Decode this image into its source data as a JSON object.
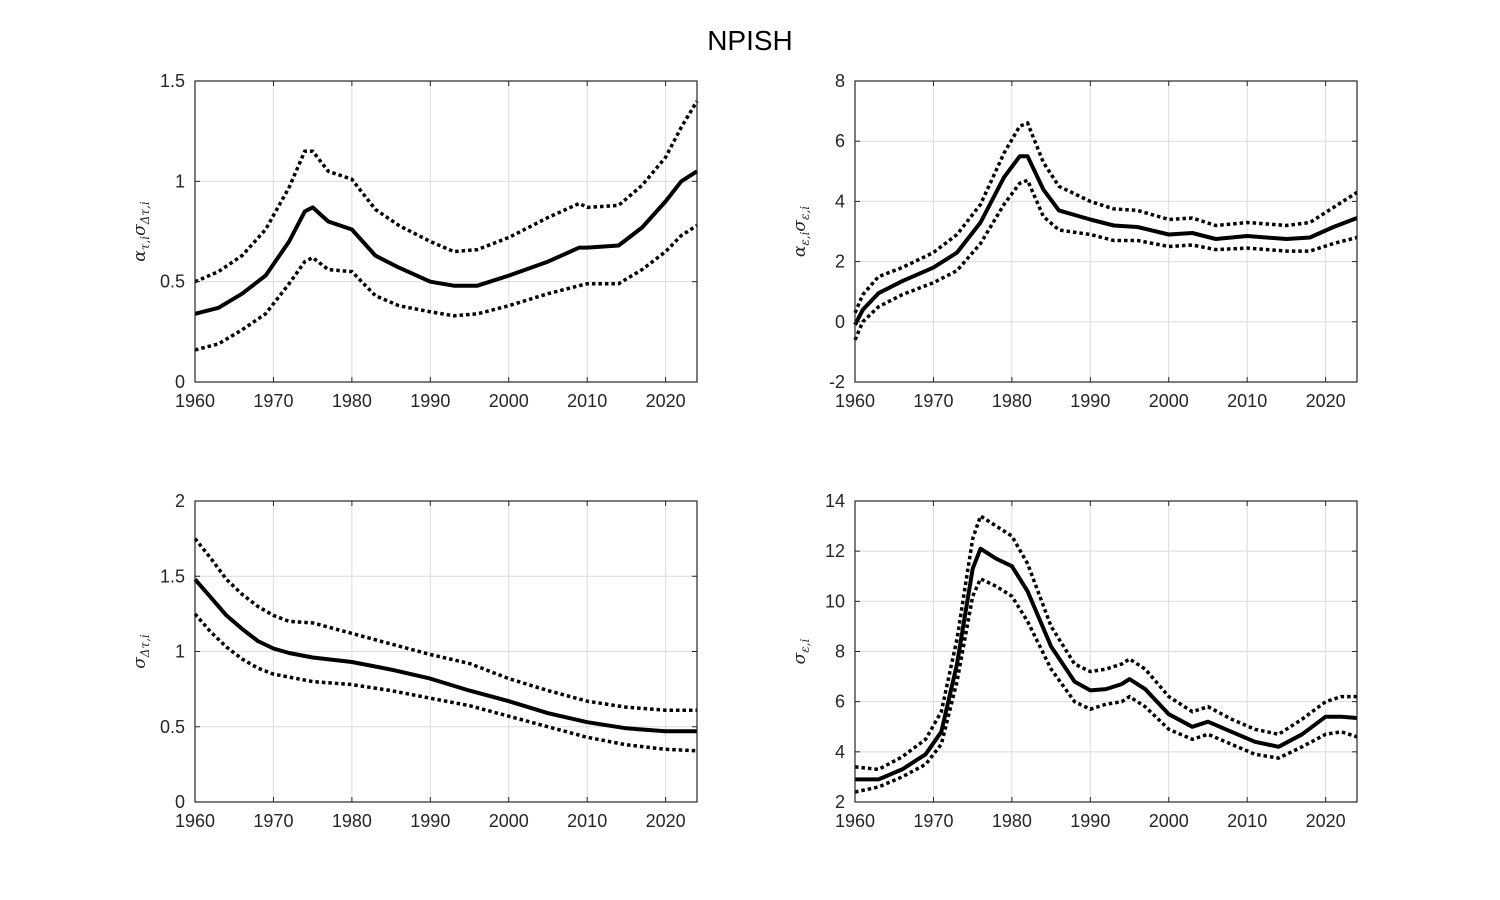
{
  "figure": {
    "title": "NPISH"
  },
  "chart_data": [
    {
      "type": "line",
      "ylabel": "α τ,i σ Δτ,i",
      "ylabel_parts": {
        "a": "α",
        "a_sub": "τ,i",
        "b": "σ",
        "b_sub": "Δτ,i"
      },
      "xlim": [
        1960,
        2024
      ],
      "ylim": [
        0,
        1.5
      ],
      "xticks": [
        1960,
        1970,
        1980,
        1990,
        2000,
        2010,
        2020
      ],
      "yticks": [
        0,
        0.5,
        1,
        1.5
      ],
      "grid": true,
      "x": [
        1960,
        1963,
        1966,
        1969,
        1972,
        1974,
        1975,
        1977,
        1980,
        1983,
        1986,
        1990,
        1993,
        1996,
        2000,
        2005,
        2009,
        2010,
        2014,
        2017,
        2020,
        2022,
        2024
      ],
      "series": [
        {
          "role": "upper",
          "values": [
            0.5,
            0.55,
            0.63,
            0.76,
            0.97,
            1.15,
            1.15,
            1.05,
            1.01,
            0.86,
            0.78,
            0.7,
            0.65,
            0.66,
            0.72,
            0.82,
            0.89,
            0.87,
            0.88,
            0.98,
            1.12,
            1.27,
            1.4
          ]
        },
        {
          "role": "median",
          "values": [
            0.34,
            0.37,
            0.44,
            0.53,
            0.7,
            0.85,
            0.87,
            0.8,
            0.76,
            0.63,
            0.57,
            0.5,
            0.48,
            0.48,
            0.53,
            0.6,
            0.67,
            0.67,
            0.68,
            0.77,
            0.9,
            1.0,
            1.05
          ]
        },
        {
          "role": "lower",
          "values": [
            0.16,
            0.19,
            0.26,
            0.34,
            0.49,
            0.6,
            0.62,
            0.56,
            0.55,
            0.43,
            0.38,
            0.35,
            0.33,
            0.34,
            0.38,
            0.44,
            0.48,
            0.49,
            0.49,
            0.56,
            0.65,
            0.73,
            0.78
          ]
        }
      ]
    },
    {
      "type": "line",
      "ylabel": "α ε,i σ ε,i",
      "ylabel_parts": {
        "a": "α",
        "a_sub": "ε,i",
        "b": "σ",
        "b_sub": "ε,i"
      },
      "xlim": [
        1960,
        2024
      ],
      "ylim": [
        -2,
        8
      ],
      "xticks": [
        1960,
        1970,
        1980,
        1990,
        2000,
        2010,
        2020
      ],
      "yticks": [
        -2,
        0,
        2,
        4,
        6,
        8
      ],
      "grid": true,
      "x": [
        1960,
        1961,
        1963,
        1966,
        1970,
        1973,
        1976,
        1979,
        1981,
        1982,
        1984,
        1986,
        1990,
        1993,
        1996,
        2000,
        2003,
        2006,
        2010,
        2015,
        2018,
        2021,
        2024
      ],
      "series": [
        {
          "role": "upper",
          "values": [
            0.3,
            0.9,
            1.5,
            1.8,
            2.3,
            2.9,
            3.9,
            5.6,
            6.5,
            6.6,
            5.3,
            4.5,
            4.0,
            3.75,
            3.7,
            3.4,
            3.45,
            3.2,
            3.3,
            3.2,
            3.3,
            3.8,
            4.3
          ]
        },
        {
          "role": "median",
          "values": [
            -0.1,
            0.4,
            0.95,
            1.35,
            1.8,
            2.3,
            3.3,
            4.8,
            5.5,
            5.5,
            4.4,
            3.7,
            3.4,
            3.2,
            3.15,
            2.9,
            2.95,
            2.75,
            2.85,
            2.75,
            2.8,
            3.15,
            3.45
          ]
        },
        {
          "role": "lower",
          "values": [
            -0.6,
            0.0,
            0.5,
            0.9,
            1.3,
            1.7,
            2.6,
            3.9,
            4.6,
            4.7,
            3.5,
            3.05,
            2.9,
            2.7,
            2.7,
            2.5,
            2.55,
            2.4,
            2.45,
            2.35,
            2.35,
            2.6,
            2.8
          ]
        }
      ]
    },
    {
      "type": "line",
      "ylabel": "σ Δτ,i",
      "ylabel_parts": {
        "a": "σ",
        "a_sub": "Δτ,i",
        "b": "",
        "b_sub": ""
      },
      "xlim": [
        1960,
        2024
      ],
      "ylim": [
        0,
        2
      ],
      "xticks": [
        1960,
        1970,
        1980,
        1990,
        2000,
        2010,
        2020
      ],
      "yticks": [
        0,
        0.5,
        1,
        1.5,
        2
      ],
      "grid": true,
      "x": [
        1960,
        1962,
        1964,
        1966,
        1968,
        1970,
        1972,
        1975,
        1980,
        1985,
        1990,
        1995,
        2000,
        2005,
        2010,
        2015,
        2020,
        2024
      ],
      "series": [
        {
          "role": "upper",
          "values": [
            1.75,
            1.62,
            1.48,
            1.38,
            1.3,
            1.24,
            1.2,
            1.19,
            1.12,
            1.05,
            0.98,
            0.92,
            0.82,
            0.74,
            0.67,
            0.63,
            0.61,
            0.61
          ]
        },
        {
          "role": "median",
          "values": [
            1.48,
            1.36,
            1.24,
            1.15,
            1.07,
            1.02,
            0.99,
            0.96,
            0.93,
            0.88,
            0.82,
            0.74,
            0.67,
            0.59,
            0.53,
            0.49,
            0.47,
            0.47
          ]
        },
        {
          "role": "lower",
          "values": [
            1.25,
            1.13,
            1.03,
            0.95,
            0.89,
            0.85,
            0.83,
            0.8,
            0.78,
            0.74,
            0.69,
            0.64,
            0.57,
            0.5,
            0.43,
            0.38,
            0.35,
            0.34
          ]
        }
      ]
    },
    {
      "type": "line",
      "ylabel": "σ ε,i",
      "ylabel_parts": {
        "a": "σ",
        "a_sub": "ε,i",
        "b": "",
        "b_sub": ""
      },
      "xlim": [
        1960,
        2024
      ],
      "ylim": [
        2,
        14
      ],
      "xticks": [
        1960,
        1970,
        1980,
        1990,
        2000,
        2010,
        2020
      ],
      "yticks": [
        2,
        4,
        6,
        8,
        10,
        12,
        14
      ],
      "grid": true,
      "x": [
        1960,
        1963,
        1966,
        1969,
        1971,
        1973,
        1975,
        1976,
        1978,
        1980,
        1982,
        1985,
        1988,
        1990,
        1992,
        1994,
        1995,
        1997,
        2000,
        2003,
        2005,
        2008,
        2011,
        2014,
        2017,
        2020,
        2022,
        2024
      ],
      "series": [
        {
          "role": "upper",
          "values": [
            3.4,
            3.3,
            3.8,
            4.5,
            5.6,
            8.5,
            12.5,
            13.4,
            13.0,
            12.6,
            11.5,
            9.0,
            7.5,
            7.2,
            7.3,
            7.5,
            7.7,
            7.3,
            6.2,
            5.6,
            5.8,
            5.3,
            4.9,
            4.7,
            5.3,
            6.0,
            6.2,
            6.2
          ]
        },
        {
          "role": "median",
          "values": [
            2.9,
            2.9,
            3.3,
            3.9,
            4.8,
            7.5,
            11.3,
            12.1,
            11.7,
            11.4,
            10.4,
            8.2,
            6.8,
            6.45,
            6.5,
            6.7,
            6.9,
            6.5,
            5.5,
            5.0,
            5.2,
            4.8,
            4.4,
            4.2,
            4.7,
            5.4,
            5.4,
            5.35
          ]
        },
        {
          "role": "lower",
          "values": [
            2.4,
            2.6,
            3.0,
            3.5,
            4.3,
            6.8,
            10.2,
            10.9,
            10.6,
            10.2,
            9.2,
            7.3,
            6.0,
            5.7,
            5.9,
            6.0,
            6.2,
            5.8,
            4.9,
            4.5,
            4.7,
            4.3,
            3.9,
            3.75,
            4.2,
            4.7,
            4.8,
            4.6
          ]
        }
      ]
    }
  ]
}
